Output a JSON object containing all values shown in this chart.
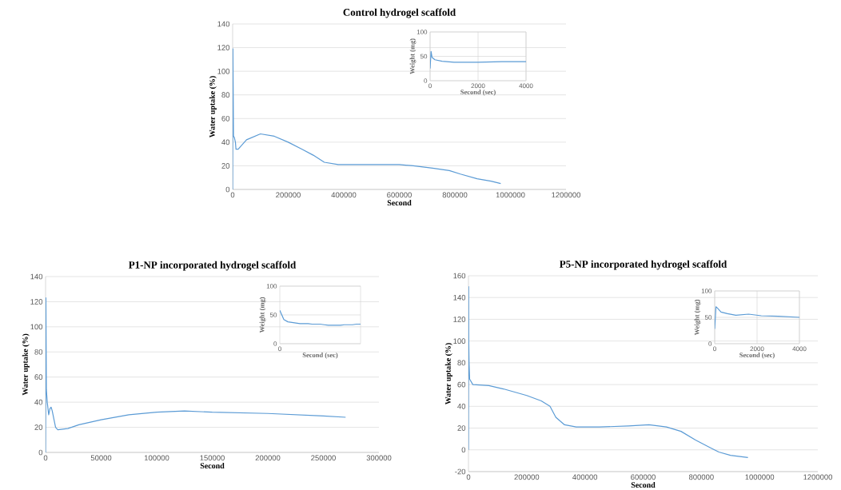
{
  "chart_data": [
    {
      "type": "line",
      "title": "Control hydrogel scaffold",
      "xlabel": "Second",
      "ylabel": "Water uptake (%)",
      "xlim": [
        0,
        1200000
      ],
      "xticks": [
        0,
        200000,
        400000,
        600000,
        800000,
        1000000,
        1200000
      ],
      "ylim": [
        0,
        140
      ],
      "yticks": [
        0,
        20,
        40,
        60,
        80,
        100,
        120,
        140
      ],
      "grid": "y",
      "series": [
        {
          "color": "#5b9bd5",
          "x": [
            0,
            1000,
            3000,
            6000,
            10000,
            12000,
            20000,
            50000,
            100000,
            150000,
            200000,
            250000,
            290000,
            330000,
            380000,
            500000,
            600000,
            650000,
            720000,
            780000,
            820000,
            880000,
            930000,
            965000
          ],
          "values": [
            0,
            119,
            45,
            44,
            40,
            34,
            34,
            42,
            47,
            45,
            40,
            34,
            29,
            23,
            21,
            21,
            21,
            20,
            18,
            16,
            13,
            9,
            7,
            5
          ]
        }
      ]
    },
    {
      "type": "line",
      "xlabel": "Second (sec)",
      "ylabel": "Weight (mg)",
      "xlim": [
        0,
        4000
      ],
      "xticks": [
        0,
        2000,
        4000
      ],
      "ylim": [
        0,
        100
      ],
      "yticks": [
        0,
        50,
        100
      ],
      "grid": true,
      "series": [
        {
          "color": "#5b9bd5",
          "x": [
            0,
            40,
            80,
            200,
            500,
            1000,
            2000,
            3000,
            4000
          ],
          "values": [
            25,
            60,
            48,
            43,
            40,
            38,
            38,
            39,
            39
          ]
        }
      ]
    },
    {
      "type": "line",
      "title": "P1-NP incorporated hydrogel scaffold",
      "xlabel": "Second",
      "ylabel": "Water uptake (%)",
      "xlim": [
        0,
        300000
      ],
      "xticks": [
        0,
        50000,
        100000,
        150000,
        200000,
        250000,
        300000
      ],
      "ylim": [
        0,
        140
      ],
      "yticks": [
        0,
        20,
        40,
        60,
        80,
        100,
        120,
        140
      ],
      "grid": "y",
      "series": [
        {
          "color": "#5b9bd5",
          "x": [
            0,
            300,
            700,
            1500,
            2800,
            4000,
            5000,
            6000,
            9000,
            11000,
            20000,
            30000,
            50000,
            75000,
            100000,
            125000,
            150000,
            200000,
            250000,
            270000
          ],
          "values": [
            0,
            123,
            50,
            40,
            30,
            35,
            36,
            33,
            20,
            18,
            19,
            22,
            26,
            30,
            32,
            33,
            32,
            31,
            29,
            28
          ]
        }
      ]
    },
    {
      "type": "line",
      "xlabel": "Second (sec)",
      "ylabel": "Weight (mg)",
      "categories": [
        "0",
        null,
        null,
        null,
        null,
        null,
        null,
        null,
        null,
        null,
        null,
        null,
        null,
        null,
        null,
        null,
        null,
        null,
        null,
        null,
        null
      ],
      "ylim": [
        0,
        100
      ],
      "yticks": [
        0,
        50,
        100
      ],
      "grid": "y",
      "series": [
        {
          "color": "#5b9bd5",
          "values": [
            58,
            42,
            38,
            37,
            36,
            35,
            35,
            35,
            34,
            34,
            34,
            33,
            32,
            32,
            32,
            32,
            33,
            33,
            33,
            34,
            34
          ]
        }
      ]
    },
    {
      "type": "line",
      "title": "P5-NP incorporated hydrogel scaffold",
      "xlabel": "Second",
      "ylabel": "Water uptake (%)",
      "xlim": [
        0,
        1200000
      ],
      "xticks": [
        0,
        200000,
        400000,
        600000,
        800000,
        1000000,
        1200000
      ],
      "ylim": [
        -20,
        160
      ],
      "yticks": [
        -20,
        0,
        20,
        40,
        60,
        80,
        100,
        120,
        140,
        160
      ],
      "grid": "y",
      "series": [
        {
          "color": "#5b9bd5",
          "x": [
            0,
            500,
            1000,
            2000,
            4000,
            15000,
            70000,
            120000,
            200000,
            250000,
            280000,
            300000,
            330000,
            370000,
            450000,
            550000,
            620000,
            680000,
            730000,
            780000,
            830000,
            860000,
            900000,
            960000
          ],
          "values": [
            0,
            150,
            100,
            80,
            65,
            60,
            59,
            56,
            50,
            45,
            40,
            30,
            23,
            21,
            21,
            22,
            23,
            21,
            17,
            9,
            2,
            -2,
            -5,
            -7
          ]
        }
      ]
    },
    {
      "type": "line",
      "xlabel": "Second (sec)",
      "ylabel": "Weight (mg)",
      "xlim": [
        0,
        4000
      ],
      "xticks": [
        0,
        2000,
        4000
      ],
      "ylim": [
        0,
        100
      ],
      "yticks": [
        0,
        50,
        100
      ],
      "grid": true,
      "series": [
        {
          "color": "#5b9bd5",
          "x": [
            0,
            60,
            120,
            300,
            600,
            1000,
            1600,
            2200,
            3000,
            4000
          ],
          "values": [
            28,
            70,
            68,
            60,
            57,
            54,
            56,
            53,
            52,
            50
          ]
        }
      ]
    }
  ]
}
